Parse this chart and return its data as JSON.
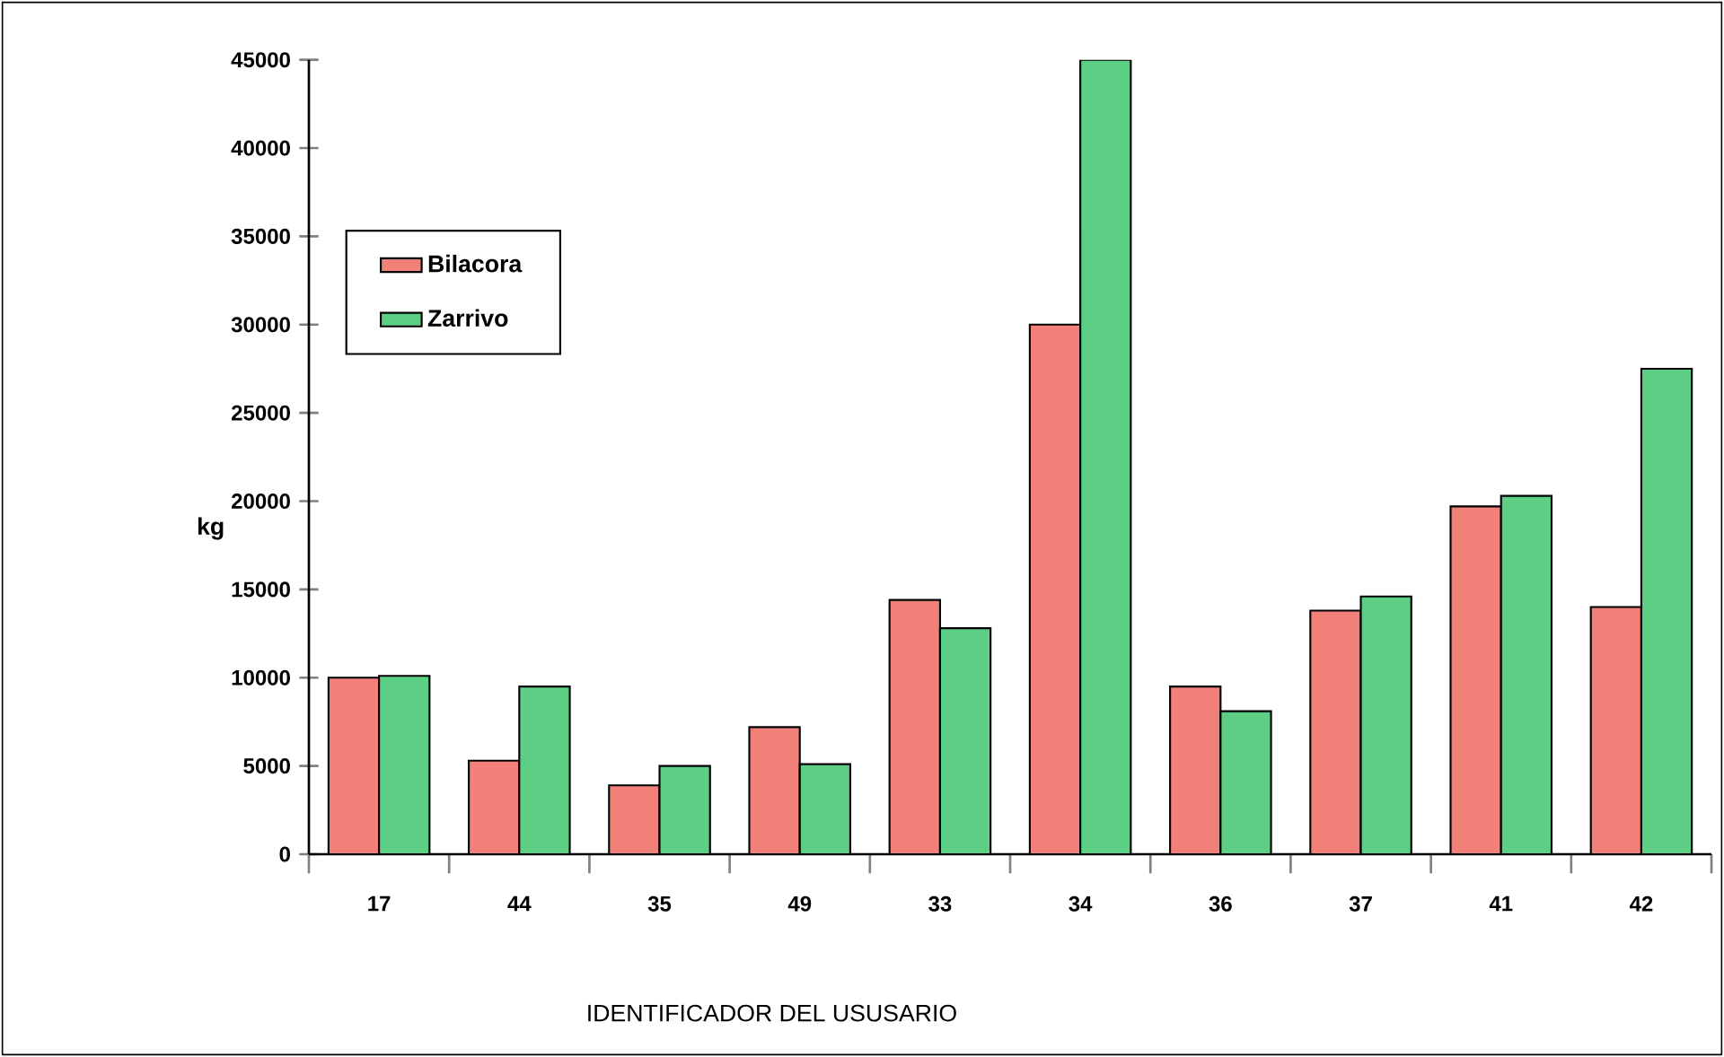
{
  "chart_data": {
    "type": "bar",
    "xlabel": "IDENTIFICADOR DEL USUSARIO",
    "ylabel": "kg",
    "categories": [
      "17",
      "44",
      "35",
      "49",
      "33",
      "34",
      "36",
      "37",
      "41",
      "42"
    ],
    "series": [
      {
        "name": "Bilacora",
        "color": "#f08078",
        "values": [
          10000,
          5300,
          3900,
          7200,
          14400,
          30000,
          9500,
          13800,
          19700,
          14000
        ]
      },
      {
        "name": "Zarrivo",
        "color": "#5ccf85",
        "values": [
          10100,
          9500,
          5000,
          5100,
          12800,
          45000,
          8100,
          14600,
          20300,
          27500
        ]
      }
    ],
    "ylim": [
      0,
      45000
    ],
    "yticks": [
      0,
      5000,
      10000,
      15000,
      20000,
      25000,
      30000,
      35000,
      40000,
      45000
    ],
    "grid": false,
    "legend": "top left"
  }
}
